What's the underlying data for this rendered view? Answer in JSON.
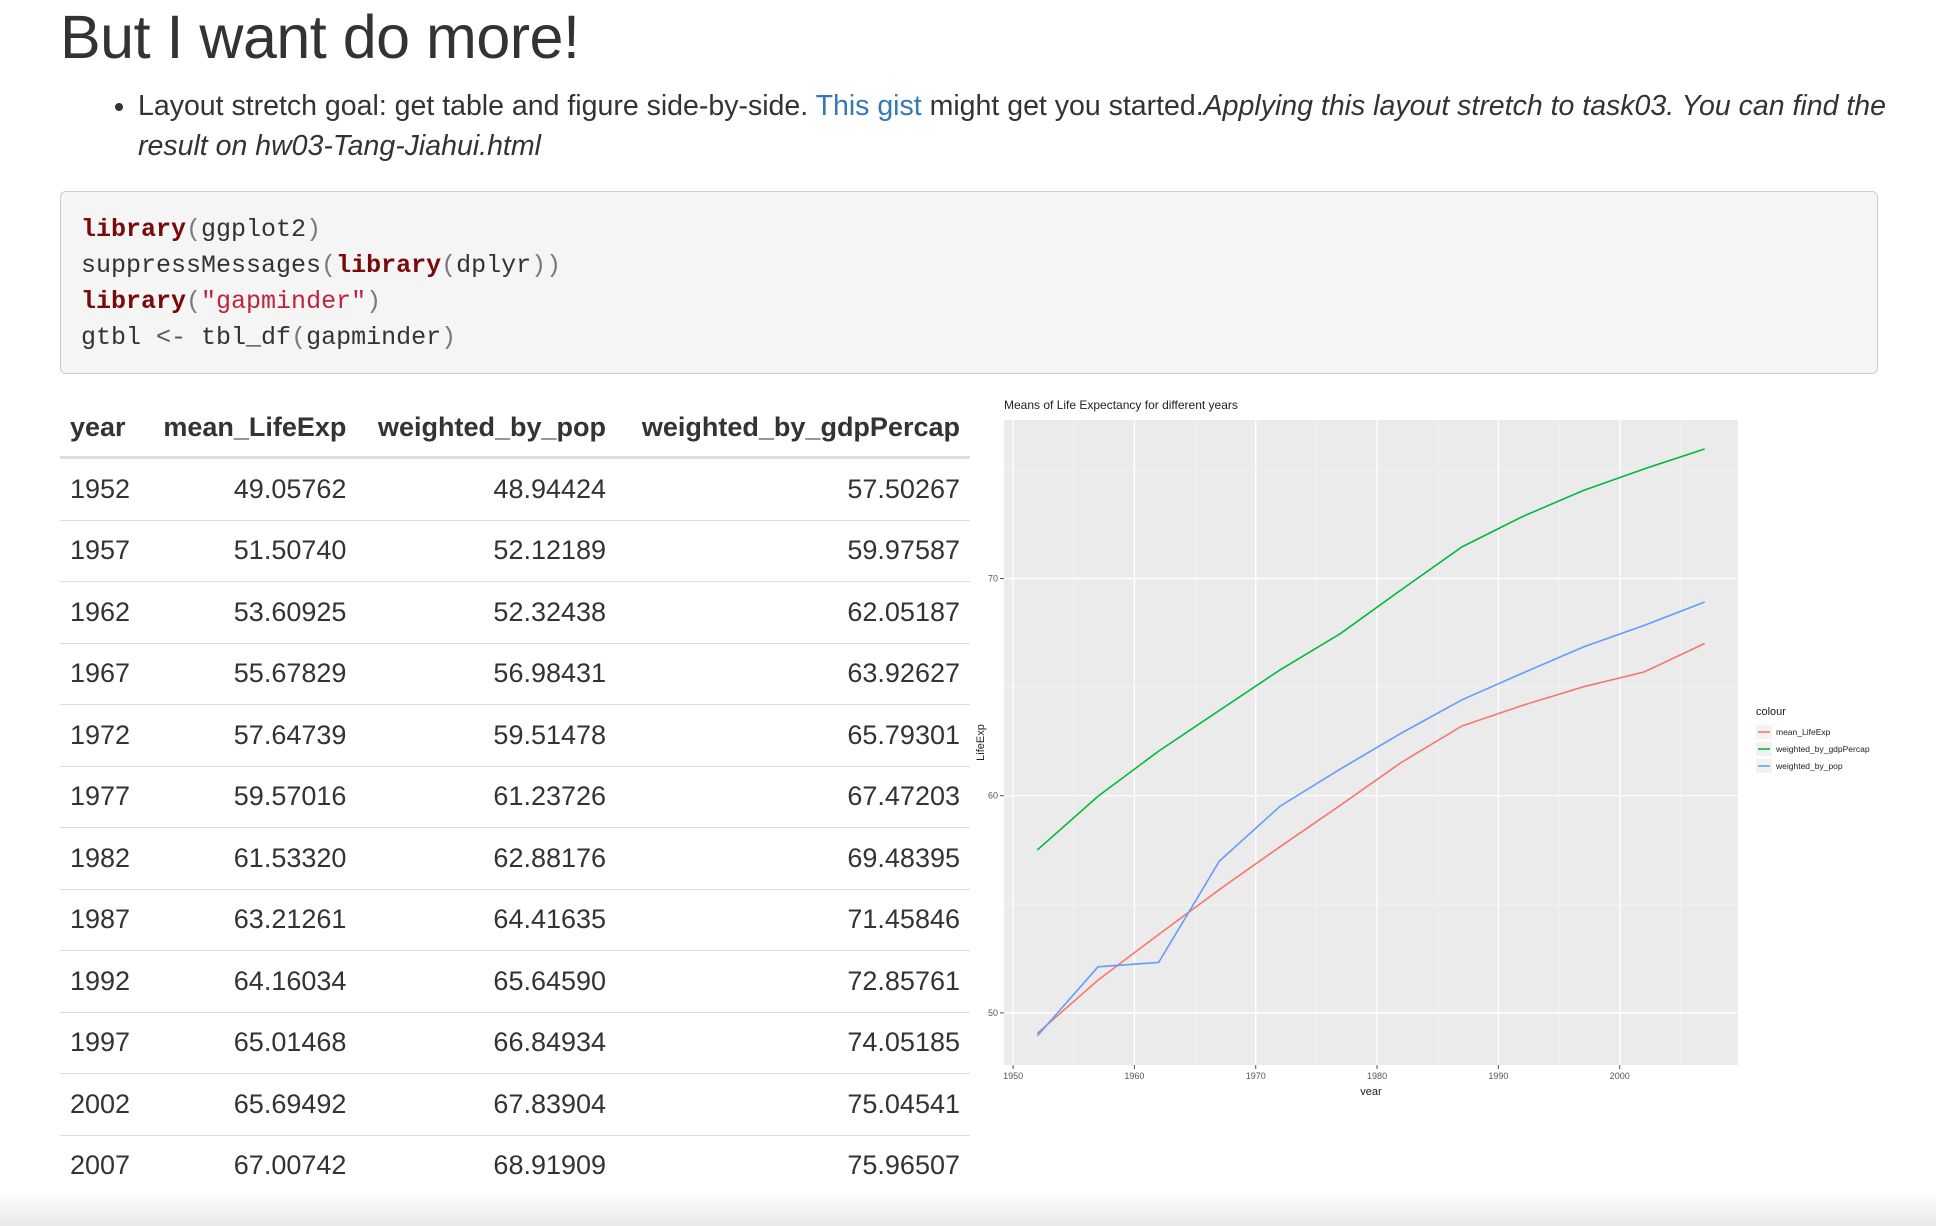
{
  "heading": "But I want do more!",
  "bullet": {
    "intro": "Layout stretch goal: get table and figure side-by-side. ",
    "link_text": "This gist",
    "after_link": " might get you started.",
    "italic": "Applying this layout stretch to task03. You can find the result on hw03-Tang-Jiahui.html"
  },
  "code": {
    "line1": {
      "fn": "library",
      "open": "(",
      "arg": "ggplot2",
      "close": ")"
    },
    "line2": {
      "fn": "suppressMessages",
      "open": "(",
      "fn2": "library",
      "open2": "(",
      "arg": "dplyr",
      "close": "))"
    },
    "line3": {
      "fn": "library",
      "open": "(",
      "arg": "\"gapminder\"",
      "close": ")"
    },
    "line4": {
      "lhs": "gtbl ",
      "op": "<-",
      "mid": " tbl_df",
      "open": "(",
      "arg": "gapminder",
      "close": ")"
    }
  },
  "table": {
    "headers": [
      "year",
      "mean_LifeExp",
      "weighted_by_pop",
      "weighted_by_gdpPercap"
    ],
    "rows": [
      [
        "1952",
        "49.05762",
        "48.94424",
        "57.50267"
      ],
      [
        "1957",
        "51.50740",
        "52.12189",
        "59.97587"
      ],
      [
        "1962",
        "53.60925",
        "52.32438",
        "62.05187"
      ],
      [
        "1967",
        "55.67829",
        "56.98431",
        "63.92627"
      ],
      [
        "1972",
        "57.64739",
        "59.51478",
        "65.79301"
      ],
      [
        "1977",
        "59.57016",
        "61.23726",
        "67.47203"
      ],
      [
        "1982",
        "61.53320",
        "62.88176",
        "69.48395"
      ],
      [
        "1987",
        "63.21261",
        "64.41635",
        "71.45846"
      ],
      [
        "1992",
        "64.16034",
        "65.64590",
        "72.85761"
      ],
      [
        "1997",
        "65.01468",
        "66.84934",
        "74.05185"
      ],
      [
        "2002",
        "65.69492",
        "67.83904",
        "75.04541"
      ],
      [
        "2007",
        "67.00742",
        "68.91909",
        "75.96507"
      ]
    ]
  },
  "chart_data": {
    "type": "line",
    "title": "Means of Life Expectancy for different years",
    "xlabel": "year",
    "ylabel": "LifeExp",
    "x": [
      1952,
      1957,
      1962,
      1967,
      1972,
      1977,
      1982,
      1987,
      1992,
      1997,
      2002,
      2007
    ],
    "xlim": [
      1949.25,
      2009.75
    ],
    "ylim": [
      47.6,
      77.3
    ],
    "xticks": [
      1950,
      1960,
      1970,
      1980,
      1990,
      2000
    ],
    "yticks": [
      50,
      60,
      70
    ],
    "grid": true,
    "legend": {
      "title": "colour",
      "position": "right"
    },
    "colors": {
      "mean_LifeExp": "#F8766D",
      "weighted_by_gdpPercap": "#00BA38",
      "weighted_by_pop": "#619CFF"
    },
    "panel_bg": "#EBEBEB",
    "series": [
      {
        "name": "mean_LifeExp",
        "values": [
          49.05762,
          51.5074,
          53.60925,
          55.67829,
          57.64739,
          59.57016,
          61.5332,
          63.21261,
          64.16034,
          65.01468,
          65.69492,
          67.00742
        ]
      },
      {
        "name": "weighted_by_gdpPercap",
        "values": [
          57.50267,
          59.97587,
          62.05187,
          63.92627,
          65.79301,
          67.47203,
          69.48395,
          71.45846,
          72.85761,
          74.05185,
          75.04541,
          75.96507
        ]
      },
      {
        "name": "weighted_by_pop",
        "values": [
          48.94424,
          52.12189,
          52.32438,
          56.98431,
          59.51478,
          61.23726,
          62.88176,
          64.41635,
          65.6459,
          66.84934,
          67.83904,
          68.91909
        ]
      }
    ]
  }
}
